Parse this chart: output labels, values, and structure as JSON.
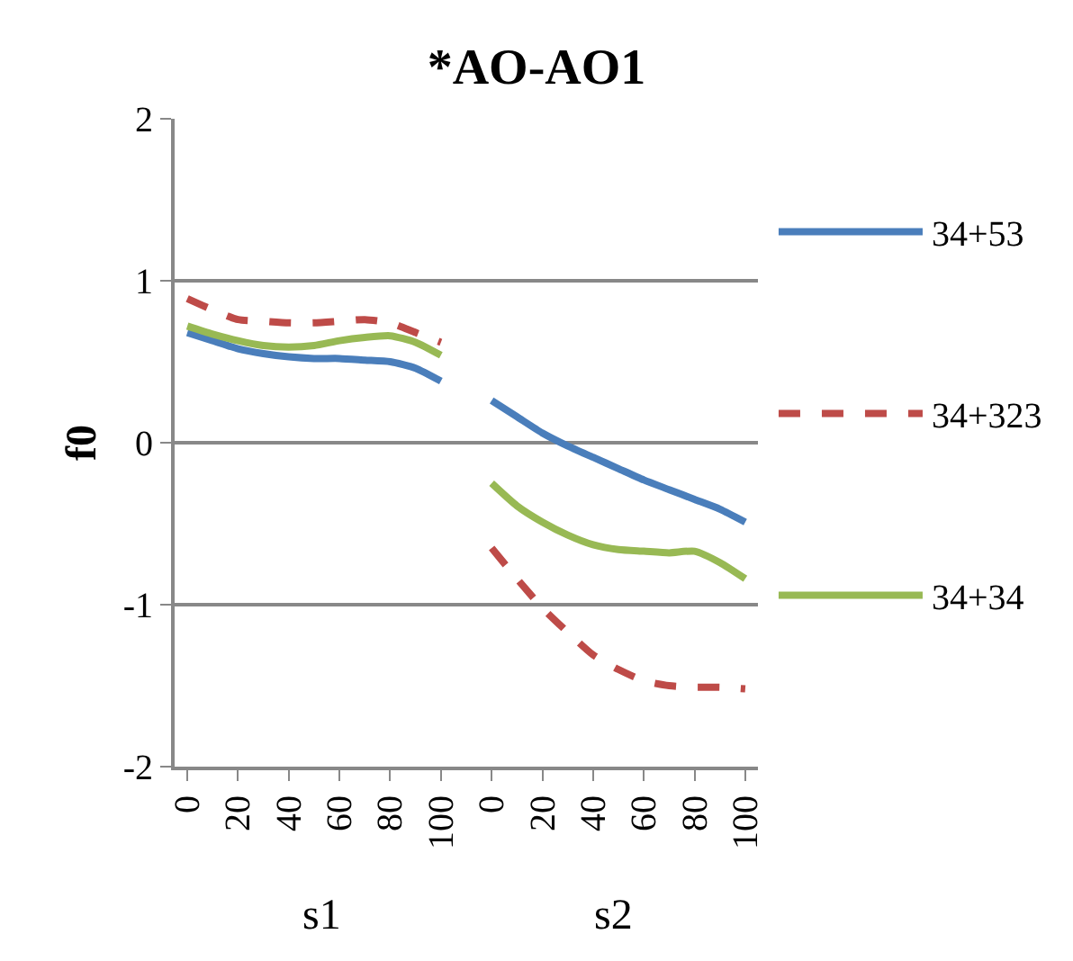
{
  "chart_data": {
    "type": "line",
    "title": "*AO-AO1",
    "ylabel": "f0",
    "categories": [
      "0",
      null,
      "20",
      null,
      "40",
      null,
      "60",
      null,
      "80",
      null,
      "100",
      null,
      "0",
      null,
      "20",
      null,
      "40",
      null,
      "60",
      null,
      "80",
      null,
      "100"
    ],
    "series": [
      {
        "name": "34+53",
        "color": "#4a7ebb",
        "line_style": "solid",
        "values": [
          0.68,
          0.63,
          0.58,
          0.55,
          0.53,
          0.52,
          0.52,
          0.51,
          0.5,
          0.46,
          0.38,
          null,
          0.26,
          0.16,
          0.06,
          -0.02,
          -0.09,
          -0.16,
          -0.23,
          -0.29,
          -0.35,
          -0.41,
          -0.49
        ]
      },
      {
        "name": "34+323",
        "color": "#be4b48",
        "line_style": "dashed",
        "values": [
          0.89,
          0.82,
          0.76,
          0.75,
          0.74,
          0.74,
          0.75,
          0.76,
          0.74,
          0.68,
          0.62,
          null,
          -0.65,
          -0.84,
          -1.02,
          -1.17,
          -1.31,
          -1.4,
          -1.47,
          -1.5,
          -1.51,
          -1.51,
          -1.52
        ]
      },
      {
        "name": "34+34",
        "color": "#98b954",
        "line_style": "solid",
        "values": [
          0.72,
          0.67,
          0.63,
          0.6,
          0.59,
          0.6,
          0.63,
          0.65,
          0.66,
          0.62,
          0.54,
          null,
          -0.25,
          -0.39,
          -0.49,
          -0.57,
          -0.63,
          -0.66,
          -0.67,
          -0.68,
          -0.67,
          -0.74,
          -0.84
        ]
      }
    ],
    "ylim": [
      -2,
      2
    ],
    "yticks": [
      -2,
      -1,
      0,
      1,
      2
    ],
    "grid": "y",
    "legend": "right",
    "marker": "none",
    "annotations": [
      "s1",
      "s2"
    ]
  }
}
